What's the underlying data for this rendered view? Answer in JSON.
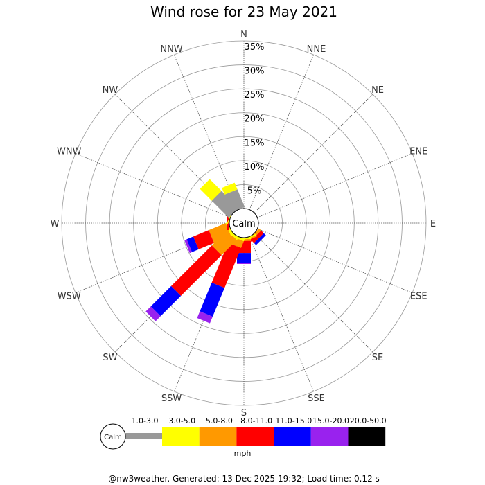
{
  "chart_data": {
    "type": "windrose",
    "title": "Wind rose for 23 May 2021",
    "directions": [
      "N",
      "NNE",
      "NE",
      "ENE",
      "E",
      "ESE",
      "SE",
      "SSE",
      "S",
      "SSW",
      "SW",
      "WSW",
      "W",
      "WNW",
      "NW",
      "NNW"
    ],
    "rings": [
      "5%",
      "10%",
      "15%",
      "20%",
      "25%",
      "30%",
      "35%"
    ],
    "rmax": 35,
    "center_label": "Calm",
    "legend": {
      "calm_label": "Calm",
      "unit": "mph",
      "bins": [
        {
          "label": "1.0-3.0",
          "color": "#999999"
        },
        {
          "label": "3.0-5.0",
          "color": "#ffff00"
        },
        {
          "label": "5.0-8.0",
          "color": "#ff9900"
        },
        {
          "label": "8.0-11.0",
          "color": "#ff0000"
        },
        {
          "label": "11.0-15.0",
          "color": "#0000ff"
        },
        {
          "label": "15.0-20.0",
          "color": "#9922ee"
        },
        {
          "label": "20.0-50.0",
          "color": "#000000"
        }
      ]
    },
    "series": [
      {
        "direction": "N",
        "values": [
          0,
          0,
          0,
          0,
          0,
          0,
          0
        ]
      },
      {
        "direction": "NNE",
        "values": [
          0,
          0,
          0,
          0,
          0,
          0,
          0
        ]
      },
      {
        "direction": "NE",
        "values": [
          0,
          0,
          0,
          0,
          0,
          0,
          0
        ]
      },
      {
        "direction": "ENE",
        "values": [
          0,
          0,
          0,
          0,
          0,
          0,
          0
        ]
      },
      {
        "direction": "E",
        "values": [
          0,
          0,
          0,
          0,
          0,
          0,
          0
        ]
      },
      {
        "direction": "ESE",
        "values": [
          0,
          0,
          0,
          0,
          0,
          0,
          0
        ]
      },
      {
        "direction": "SE",
        "values": [
          0,
          0,
          0.6,
          0.8,
          0.6,
          0,
          0
        ]
      },
      {
        "direction": "SSE",
        "values": [
          0,
          0.3,
          0.3,
          0.5,
          0,
          0,
          0
        ]
      },
      {
        "direction": "S",
        "values": [
          0,
          0.3,
          0.4,
          2.5,
          2.0,
          0.3,
          0
        ]
      },
      {
        "direction": "SSW",
        "values": [
          0,
          0.5,
          1.5,
          9.0,
          6.5,
          1.5,
          0
        ]
      },
      {
        "direction": "SW",
        "values": [
          0,
          0.5,
          4.5,
          12.0,
          6.0,
          1.5,
          0
        ]
      },
      {
        "direction": "WSW",
        "values": [
          0,
          0.5,
          3.8,
          3.5,
          1.5,
          0.5,
          0
        ]
      },
      {
        "direction": "W",
        "values": [
          0,
          0,
          0.1,
          0.4,
          0,
          0,
          0
        ]
      },
      {
        "direction": "WNW",
        "values": [
          0,
          0.2,
          0,
          0,
          0,
          0,
          0
        ]
      },
      {
        "direction": "NW",
        "values": [
          5.0,
          3.5,
          0,
          0,
          0,
          0,
          0
        ]
      },
      {
        "direction": "NNW",
        "values": [
          4.0,
          1.5,
          0,
          0,
          0,
          0,
          0
        ]
      }
    ]
  },
  "footer": "@nw3weather. Generated: 13 Dec 2025 19:32; Load time: 0.12 s"
}
